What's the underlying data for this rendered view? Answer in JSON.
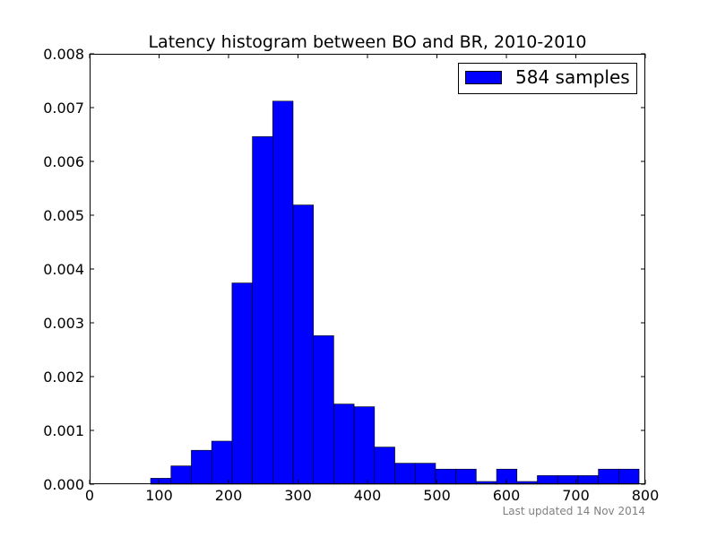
{
  "chart_data": {
    "type": "bar",
    "title": "Latency histogram between BO and BR, 2010-2010",
    "xlabel": "",
    "ylabel": "",
    "xlim": [
      0,
      800
    ],
    "ylim": [
      0,
      0.008
    ],
    "x_ticks": [
      0,
      100,
      200,
      300,
      400,
      500,
      600,
      700,
      800
    ],
    "y_ticks": [
      "0.000",
      "0.001",
      "0.002",
      "0.003",
      "0.004",
      "0.005",
      "0.006",
      "0.007",
      "0.008"
    ],
    "grid": false,
    "legend_position": "top-right",
    "bar_color": "#0000ff",
    "bins": [
      {
        "x0": 87.8,
        "x1": 117.1,
        "value": 0.00011
      },
      {
        "x0": 117.1,
        "x1": 146.4,
        "value": 0.00034
      },
      {
        "x0": 146.4,
        "x1": 175.7,
        "value": 0.00063
      },
      {
        "x0": 175.7,
        "x1": 205.0,
        "value": 0.0008
      },
      {
        "x0": 205.0,
        "x1": 234.3,
        "value": 0.00374
      },
      {
        "x0": 234.3,
        "x1": 263.6,
        "value": 0.00646
      },
      {
        "x0": 263.6,
        "x1": 292.9,
        "value": 0.00712
      },
      {
        "x0": 292.9,
        "x1": 322.2,
        "value": 0.00519
      },
      {
        "x0": 322.2,
        "x1": 351.5,
        "value": 0.00276
      },
      {
        "x0": 351.5,
        "x1": 380.8,
        "value": 0.00149
      },
      {
        "x0": 380.8,
        "x1": 410.1,
        "value": 0.00144
      },
      {
        "x0": 410.1,
        "x1": 439.4,
        "value": 0.00069
      },
      {
        "x0": 439.4,
        "x1": 468.7,
        "value": 0.00039
      },
      {
        "x0": 468.7,
        "x1": 498.0,
        "value": 0.00039
      },
      {
        "x0": 498.0,
        "x1": 527.3,
        "value": 0.00028
      },
      {
        "x0": 527.3,
        "x1": 556.6,
        "value": 0.00028
      },
      {
        "x0": 556.6,
        "x1": 585.9,
        "value": 5e-05
      },
      {
        "x0": 585.9,
        "x1": 615.2,
        "value": 0.00028
      },
      {
        "x0": 615.2,
        "x1": 644.5,
        "value": 5e-05
      },
      {
        "x0": 644.5,
        "x1": 673.8,
        "value": 0.00016
      },
      {
        "x0": 673.8,
        "x1": 703.1,
        "value": 0.00016
      },
      {
        "x0": 703.1,
        "x1": 732.4,
        "value": 0.00016
      },
      {
        "x0": 732.4,
        "x1": 761.7,
        "value": 0.00028
      },
      {
        "x0": 761.7,
        "x1": 791.0,
        "value": 0.00028
      }
    ],
    "series": [
      {
        "name": "584 samples"
      }
    ]
  },
  "footer": {
    "updated_text": "Last updated 14 Nov 2014"
  }
}
